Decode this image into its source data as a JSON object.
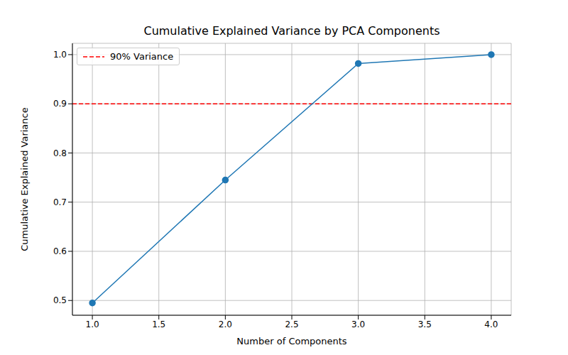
{
  "chart_data": {
    "type": "line",
    "title": "Cumulative Explained Variance by PCA Components",
    "x_label": "Number of Components",
    "y_label": "Cumulative Explained Variance",
    "x": [
      1,
      2,
      3,
      4
    ],
    "values": [
      0.495,
      0.745,
      0.982,
      1.0
    ],
    "color": "#1f77b4",
    "marker": "circle",
    "line_style": "solid",
    "xlim": [
      0.85,
      4.15
    ],
    "xticks": [
      {
        "value": 1,
        "label": "1.0"
      },
      1.5,
      {
        "value": 2,
        "label": "2.0"
      },
      2.5,
      {
        "value": 3,
        "label": "3.0"
      },
      3.5,
      {
        "value": 4,
        "label": "4.0"
      }
    ],
    "ylim": [
      0.47,
      1.023
    ],
    "yticks": [
      0.5,
      0.6,
      0.7,
      0.8,
      0.9,
      {
        "value": 1,
        "label": "1.0"
      }
    ],
    "grid": true,
    "reference_lines": [
      {
        "y": 0.9,
        "label": "90% Variance",
        "color": "#ff0000",
        "line_style": "dashed"
      }
    ],
    "legend": "upper left"
  }
}
